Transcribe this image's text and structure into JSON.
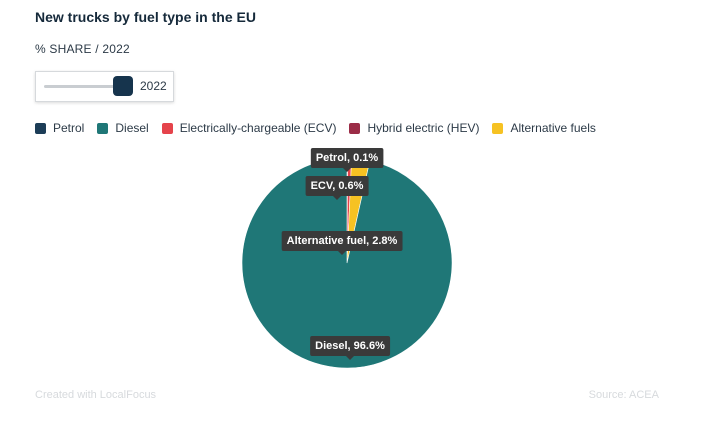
{
  "header": {
    "title": "New trucks by fuel type in the EU",
    "subtitle": "% SHARE / 2022"
  },
  "slider": {
    "value": "2022"
  },
  "legend": [
    {
      "label": "Petrol",
      "color": "#1c3d57"
    },
    {
      "label": "Diesel",
      "color": "#1f7777"
    },
    {
      "label": "Electrically-chargeable (ECV)",
      "color": "#e5434b"
    },
    {
      "label": "Hybrid electric (HEV)",
      "color": "#9b2c47"
    },
    {
      "label": "Alternative fuels",
      "color": "#f6c223"
    }
  ],
  "chart_data": {
    "type": "pie",
    "title": "New trucks by fuel type in the EU",
    "subtitle": "% SHARE / 2022",
    "slices": [
      {
        "label": "Petrol",
        "value": 0.1,
        "color": "#1c3d57",
        "tooltip": "Petrol, 0.1%"
      },
      {
        "label": "Electrically-chargeable (ECV)",
        "value": 0.6,
        "color": "#e5434b",
        "tooltip": "ECV, 0.6%"
      },
      {
        "label": "Hybrid electric (HEV)",
        "value": 0.0,
        "color": "#9b2c47",
        "tooltip": ""
      },
      {
        "label": "Alternative fuels",
        "value": 2.8,
        "color": "#f6c223",
        "tooltip": "Alternative fuel, 2.8%"
      },
      {
        "label": "Diesel",
        "value": 96.6,
        "color": "#1f7777",
        "tooltip": "Diesel, 96.6%"
      }
    ],
    "legend_position": "top"
  },
  "footer": {
    "credit": "Created with LocalFocus",
    "source": "Source: ACEA"
  }
}
